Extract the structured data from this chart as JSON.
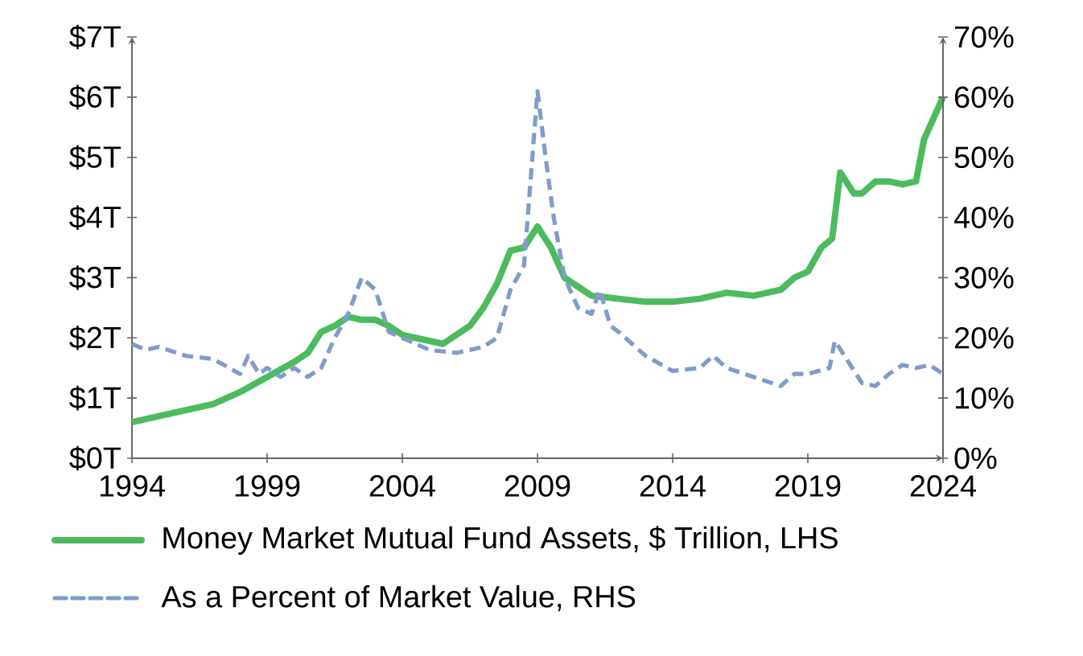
{
  "chart_data": {
    "type": "line",
    "xlim": [
      1994,
      2024
    ],
    "xticks": [
      1994,
      1999,
      2004,
      2009,
      2014,
      2019,
      2024
    ],
    "ylim": [
      0,
      7
    ],
    "yticks": [
      {
        "value": 0,
        "label": "$0T"
      },
      {
        "value": 1,
        "label": "$1T"
      },
      {
        "value": 2,
        "label": "$2T"
      },
      {
        "value": 3,
        "label": "$3T"
      },
      {
        "value": 4,
        "label": "$4T"
      },
      {
        "value": 5,
        "label": "$5T"
      },
      {
        "value": 6,
        "label": "$6T"
      },
      {
        "value": 7,
        "label": "$7T"
      }
    ],
    "y2lim": [
      0,
      70
    ],
    "y2ticks": [
      {
        "value": 0,
        "label": "0%"
      },
      {
        "value": 10,
        "label": "10%"
      },
      {
        "value": 20,
        "label": "20%"
      },
      {
        "value": 30,
        "label": "30%"
      },
      {
        "value": 40,
        "label": "40%"
      },
      {
        "value": 50,
        "label": "50%"
      },
      {
        "value": 60,
        "label": "60%"
      },
      {
        "value": 70,
        "label": "70%"
      }
    ],
    "grid": false,
    "legend": "bottom",
    "series": [
      {
        "name": "Money Market Mutual Fund Assets, $ Trillion, LHS",
        "color": "#4cbb5e",
        "line_style": "solid",
        "x": [
          1994,
          1995,
          1996,
          1997,
          1998,
          1999,
          2000,
          2000.5,
          2001,
          2001.5,
          2002,
          2002.5,
          2003,
          2003.5,
          2004,
          2005,
          2005.5,
          2006,
          2006.5,
          2007,
          2007.5,
          2008,
          2008.5,
          2009,
          2009.5,
          2010,
          2010.5,
          2011,
          2012,
          2013,
          2014,
          2015,
          2016,
          2017,
          2018,
          2018.5,
          2019,
          2019.5,
          2019.9,
          2020.2,
          2020.7,
          2021,
          2021.5,
          2022,
          2022.5,
          2023,
          2023.3,
          2023.7,
          2024
        ],
        "values": [
          0.6,
          0.7,
          0.8,
          0.9,
          1.1,
          1.35,
          1.6,
          1.75,
          2.1,
          2.2,
          2.35,
          2.3,
          2.3,
          2.2,
          2.05,
          1.95,
          1.9,
          2.05,
          2.2,
          2.5,
          2.9,
          3.45,
          3.5,
          3.85,
          3.5,
          3.0,
          2.85,
          2.7,
          2.65,
          2.6,
          2.6,
          2.65,
          2.75,
          2.7,
          2.8,
          3.0,
          3.1,
          3.5,
          3.65,
          4.75,
          4.4,
          4.4,
          4.6,
          4.6,
          4.55,
          4.6,
          5.3,
          5.7,
          6.0
        ]
      },
      {
        "name": "As a Percent of Market Value, RHS",
        "color": "#7f9ccb",
        "line_style": "dashed",
        "axis": "y2",
        "x": [
          1994,
          1994.5,
          1995,
          1996,
          1997,
          1998,
          1998.3,
          1998.7,
          1999,
          1999.5,
          2000,
          2000.5,
          2001,
          2001.5,
          2002,
          2002.5,
          2003,
          2003.5,
          2004,
          2005,
          2006,
          2007,
          2007.5,
          2008,
          2008.5,
          2009,
          2009.3,
          2009.6,
          2010,
          2010.5,
          2011,
          2011.3,
          2011.7,
          2012,
          2013,
          2014,
          2015,
          2015.5,
          2016,
          2017,
          2018,
          2018.5,
          2019,
          2019.8,
          2020,
          2020.5,
          2021,
          2021.5,
          2022,
          2022.5,
          2023,
          2023.5,
          2024
        ],
        "values": [
          19,
          18,
          18.5,
          17,
          16.5,
          14,
          17,
          14,
          15,
          13.5,
          15,
          13.5,
          15,
          20,
          24,
          30,
          28,
          21,
          20,
          18,
          17.5,
          18.5,
          20,
          28,
          32,
          61,
          50,
          40,
          30,
          25,
          24,
          28,
          22,
          21,
          17,
          14.5,
          15,
          17,
          15,
          13.5,
          12,
          14,
          14,
          15,
          19.5,
          16,
          12.5,
          12,
          14,
          15.5,
          15,
          15.5,
          14
        ]
      }
    ]
  }
}
